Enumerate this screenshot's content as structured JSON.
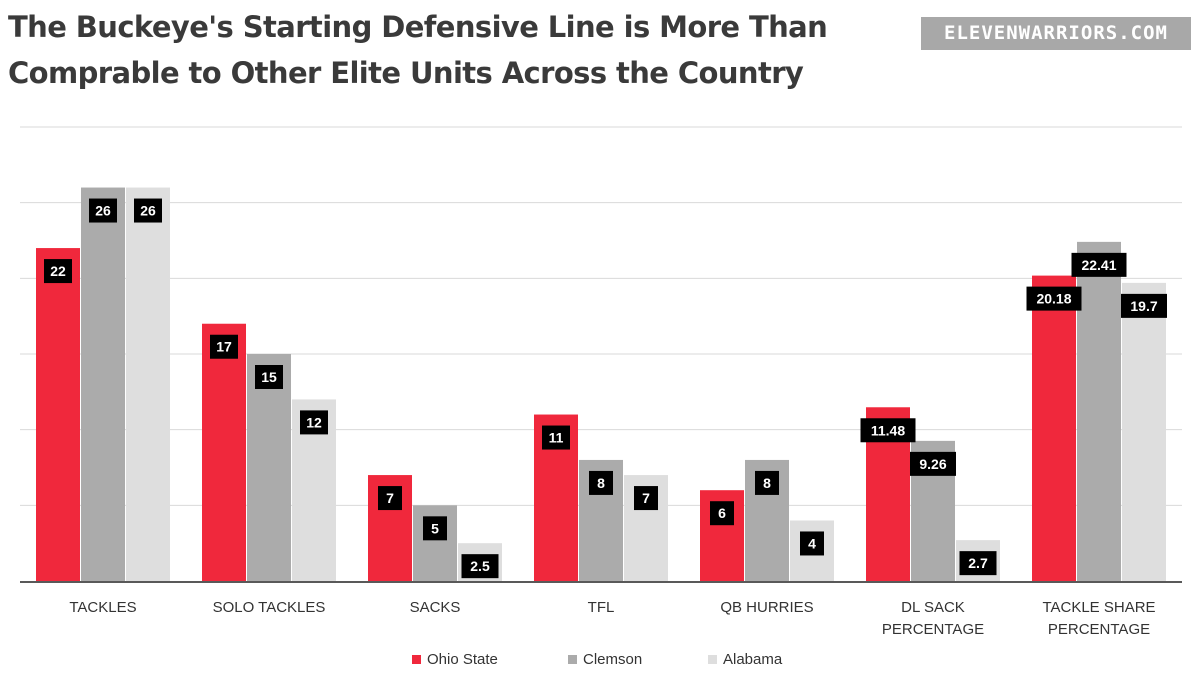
{
  "header": {
    "title_line1": "The Buckeye's Starting Defensive Line is More Than",
    "title_line2": "Comprable to Other Elite Units Across the Country",
    "logo_text": "ELEVENWARRIORS.COM"
  },
  "colors": {
    "ohio_state": "#f0283c",
    "clemson": "#ababab",
    "alabama": "#dedede",
    "label_bg": "#000000",
    "grid": "#d9d9d9",
    "axis": "#595959"
  },
  "chart_data": {
    "type": "bar",
    "title": "The Buckeye's Starting Defensive Line is More Than Comprable to Other Elite Units Across the Country",
    "xlabel": "",
    "ylabel": "",
    "ylim": [
      0,
      30
    ],
    "grid": true,
    "legend_position": "bottom",
    "categories": [
      [
        "TACKLES"
      ],
      [
        "SOLO TACKLES"
      ],
      [
        "SACKS"
      ],
      [
        "TFL"
      ],
      [
        "QB HURRIES"
      ],
      [
        "DL SACK",
        "PERCENTAGE"
      ],
      [
        "TACKLE SHARE",
        "PERCENTAGE"
      ]
    ],
    "series": [
      {
        "name": "Ohio State",
        "color": "#f0283c",
        "values": [
          22,
          17,
          7,
          11,
          6,
          11.48,
          20.18
        ],
        "labels": [
          "22",
          "17",
          "7",
          "11",
          "6",
          "11.48",
          "20.18"
        ]
      },
      {
        "name": "Clemson",
        "color": "#ababab",
        "values": [
          26,
          15,
          5,
          8,
          8,
          9.26,
          22.41
        ],
        "labels": [
          "26",
          "15",
          "5",
          "8",
          "8",
          "9.26",
          "22.41"
        ]
      },
      {
        "name": "Alabama",
        "color": "#dedede",
        "values": [
          26,
          12,
          2.5,
          7,
          4,
          2.7,
          19.7
        ],
        "labels": [
          "26",
          "12",
          "2.5",
          "7",
          "4",
          "2.7",
          "19.7"
        ]
      }
    ]
  }
}
